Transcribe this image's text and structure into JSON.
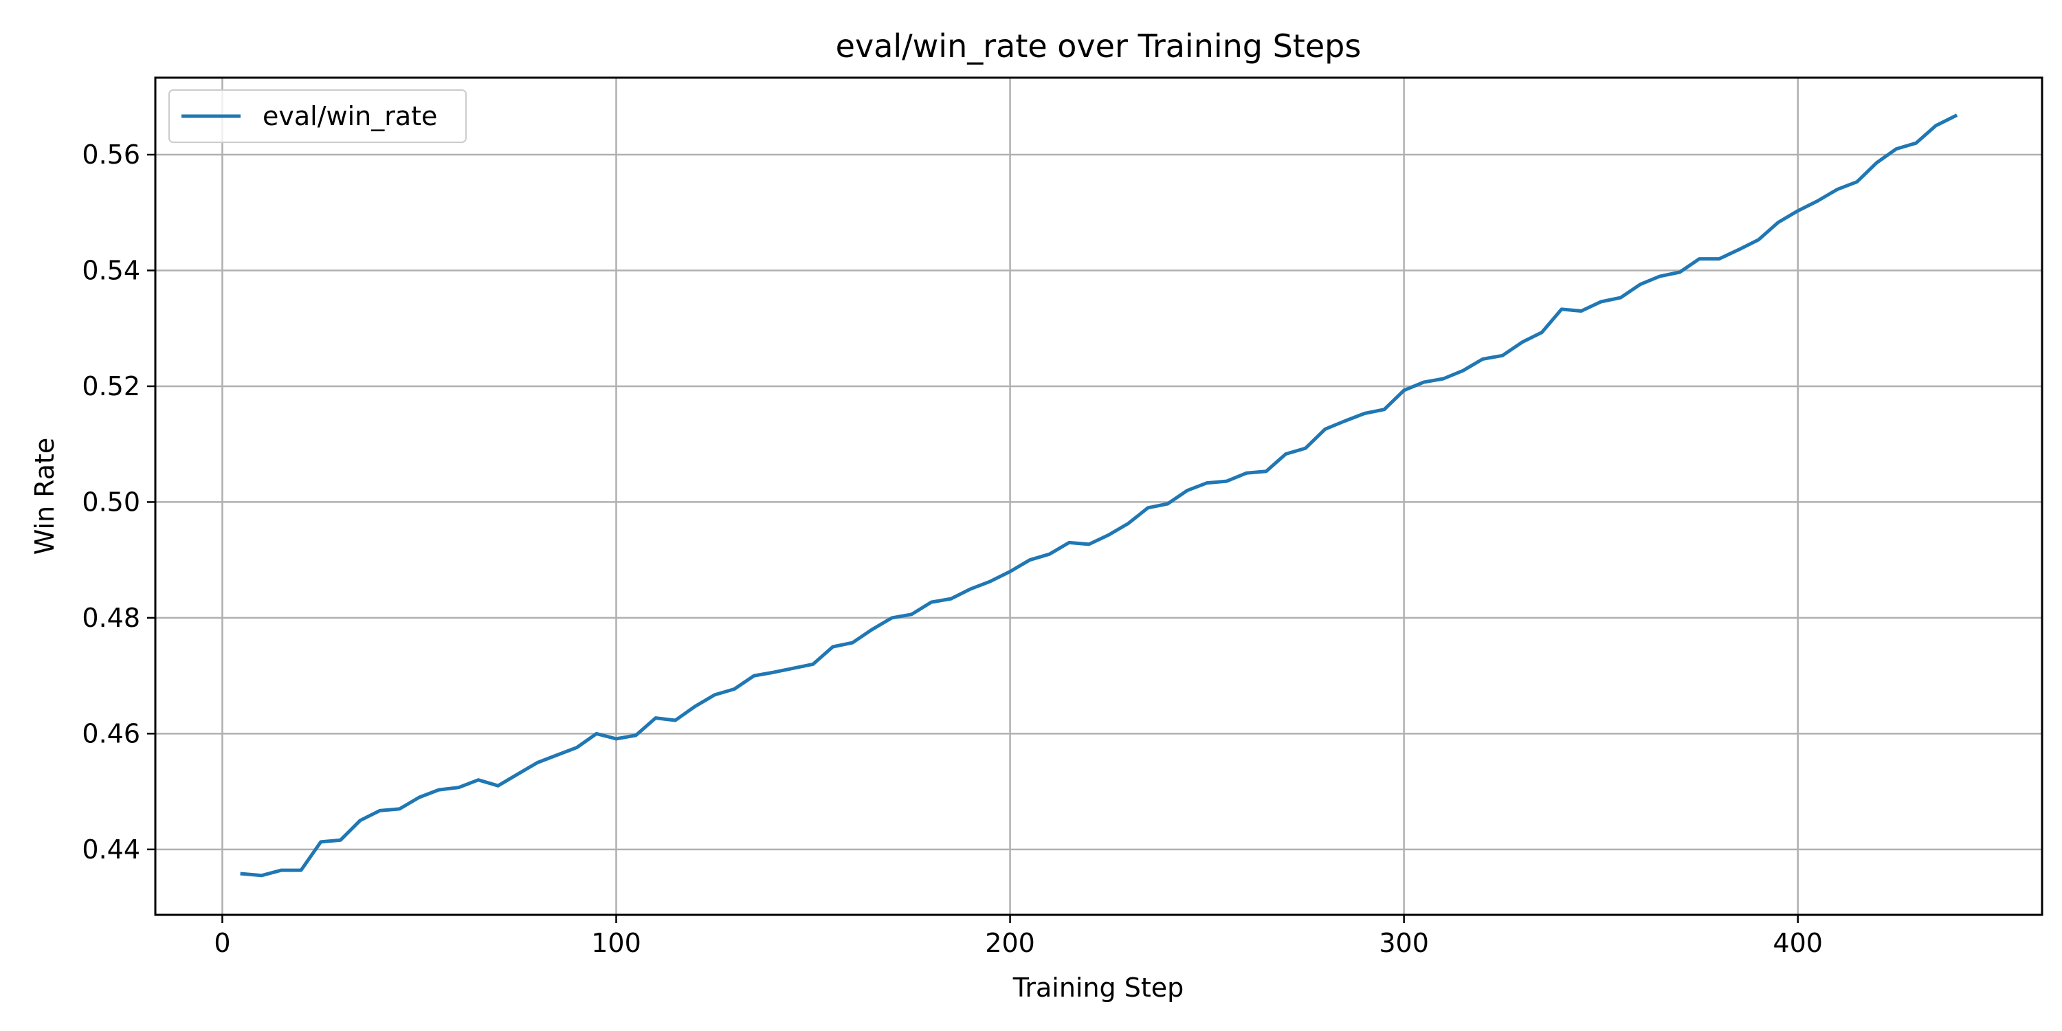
{
  "chart_data": {
    "type": "line",
    "title": "eval/win_rate over Training Steps",
    "xlabel": "Training Step",
    "ylabel": "Win Rate",
    "xlim": [
      -17,
      462
    ],
    "ylim": [
      0.4287,
      0.5733
    ],
    "xticks": [
      0,
      100,
      200,
      300,
      400
    ],
    "yticks": [
      0.44,
      0.46,
      0.48,
      0.5,
      0.52,
      0.54,
      0.56
    ],
    "ytick_labels": [
      "0.44",
      "0.46",
      "0.48",
      "0.50",
      "0.52",
      "0.54",
      "0.56"
    ],
    "grid": true,
    "legend": "top-left",
    "series": [
      {
        "name": "eval/win_rate",
        "color": "#1f77b4",
        "x": [
          5,
          10,
          15,
          20,
          25,
          30,
          35,
          40,
          45,
          50,
          55,
          60,
          65,
          70,
          75,
          80,
          85,
          90,
          95,
          100,
          105,
          110,
          115,
          120,
          125,
          130,
          135,
          140,
          145,
          150,
          155,
          160,
          165,
          170,
          175,
          180,
          185,
          190,
          195,
          200,
          205,
          210,
          215,
          220,
          225,
          230,
          235,
          240,
          245,
          250,
          255,
          260,
          265,
          270,
          275,
          280,
          285,
          290,
          295,
          300,
          305,
          310,
          315,
          320,
          325,
          330,
          335,
          340,
          345,
          350,
          355,
          360,
          365,
          370,
          375,
          380,
          385,
          390,
          395,
          400,
          405,
          410,
          415,
          420,
          425,
          430,
          435,
          440
        ],
        "y": [
          0.4358,
          0.4355,
          0.4364,
          0.4364,
          0.4413,
          0.4416,
          0.445,
          0.4467,
          0.447,
          0.449,
          0.4503,
          0.4507,
          0.452,
          0.451,
          0.453,
          0.455,
          0.4563,
          0.4576,
          0.46,
          0.4591,
          0.4597,
          0.4627,
          0.4623,
          0.4647,
          0.4667,
          0.4677,
          0.47,
          0.4706,
          0.4713,
          0.472,
          0.475,
          0.4757,
          0.478,
          0.48,
          0.4806,
          0.4827,
          0.4833,
          0.485,
          0.4863,
          0.488,
          0.49,
          0.491,
          0.493,
          0.4927,
          0.4943,
          0.4963,
          0.499,
          0.4997,
          0.502,
          0.5033,
          0.5036,
          0.505,
          0.5053,
          0.5083,
          0.5093,
          0.5126,
          0.514,
          0.5153,
          0.516,
          0.5193,
          0.5207,
          0.5213,
          0.5227,
          0.5247,
          0.5253,
          0.5276,
          0.5293,
          0.5333,
          0.533,
          0.5346,
          0.5353,
          0.5376,
          0.539,
          0.5397,
          0.542,
          0.542,
          0.5436,
          0.5453,
          0.5483,
          0.5503,
          0.552,
          0.554,
          0.5553,
          0.5586,
          0.561,
          0.562,
          0.565,
          0.5667
        ]
      }
    ]
  }
}
